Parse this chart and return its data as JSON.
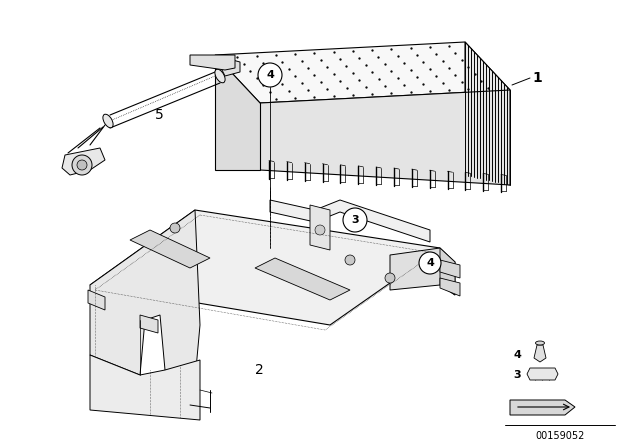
{
  "bg_color": "#ffffff",
  "part_number": "00159052",
  "line_color": "#000000",
  "gray_fill": "#f0f0f0",
  "dark_gray": "#d0d0d0",
  "mid_gray": "#e0e0e0"
}
